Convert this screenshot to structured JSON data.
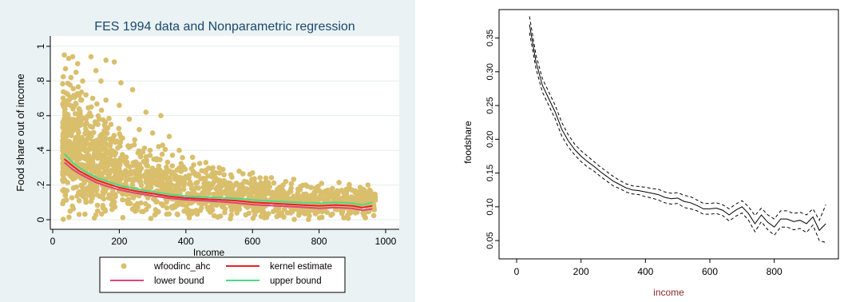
{
  "chart_data": [
    {
      "type": "scatter",
      "title": "FES 1994 data and Nonparametric regression",
      "xlabel": "Income",
      "ylabel": "Food share out of income",
      "xlim": [
        0,
        1000
      ],
      "ylim": [
        0,
        1
      ],
      "xticks": [
        0,
        200,
        400,
        600,
        800,
        1000
      ],
      "yticks": [
        0,
        0.2,
        0.4,
        0.6,
        0.8,
        1
      ],
      "ytick_labels": [
        "0",
        ".2",
        ".4",
        ".6",
        ".8",
        "1"
      ],
      "grid": true,
      "legend_position": "bottom",
      "series": [
        {
          "name": "wfoodinc_ahc",
          "kind": "points",
          "color": "#D9BE6C",
          "description_points": [
            [
              35,
              0.95
            ],
            [
              48,
              0.93
            ],
            [
              60,
              0.94
            ],
            [
              75,
              0.9
            ],
            [
              115,
              0.94
            ],
            [
              160,
              0.92
            ],
            [
              185,
              0.91
            ],
            [
              70,
              0.85
            ],
            [
              55,
              0.82
            ],
            [
              90,
              0.8
            ],
            [
              130,
              0.86
            ],
            [
              145,
              0.8
            ],
            [
              205,
              0.79
            ],
            [
              240,
              0.75
            ],
            [
              100,
              0.72
            ],
            [
              120,
              0.7
            ],
            [
              160,
              0.69
            ],
            [
              200,
              0.66
            ],
            [
              280,
              0.62
            ],
            [
              325,
              0.6
            ],
            [
              230,
              0.58
            ],
            [
              80,
              0.6
            ],
            [
              140,
              0.58
            ],
            [
              175,
              0.55
            ],
            [
              260,
              0.52
            ],
            [
              300,
              0.5
            ],
            [
              350,
              0.48
            ],
            [
              210,
              0.47
            ],
            [
              330,
              0.43
            ],
            [
              380,
              0.4
            ],
            [
              420,
              0.36
            ],
            [
              460,
              0.33
            ],
            [
              500,
              0.3
            ],
            [
              560,
              0.28
            ],
            [
              600,
              0.27
            ],
            [
              640,
              0.24
            ],
            [
              700,
              0.22
            ],
            [
              760,
              0.2
            ],
            [
              840,
              0.18
            ],
            [
              900,
              0.17
            ],
            [
              950,
              0.16
            ]
          ]
        },
        {
          "name": "kernel estimate",
          "kind": "line",
          "color": "#E8202A",
          "x": [
            35,
            60,
            80,
            100,
            130,
            160,
            200,
            250,
            300,
            350,
            400,
            450,
            500,
            550,
            600,
            650,
            700,
            750,
            800,
            850,
            900,
            930,
            960
          ],
          "y": [
            0.35,
            0.31,
            0.28,
            0.26,
            0.23,
            0.21,
            0.185,
            0.165,
            0.15,
            0.135,
            0.125,
            0.12,
            0.115,
            0.11,
            0.1,
            0.095,
            0.09,
            0.085,
            0.08,
            0.085,
            0.08,
            0.07,
            0.08
          ]
        },
        {
          "name": "lower bound",
          "kind": "line",
          "color": "#E0457B",
          "x": [
            35,
            60,
            80,
            100,
            130,
            160,
            200,
            250,
            300,
            350,
            400,
            450,
            500,
            550,
            600,
            650,
            700,
            750,
            800,
            850,
            900,
            930,
            960
          ],
          "y": [
            0.33,
            0.29,
            0.265,
            0.245,
            0.215,
            0.195,
            0.172,
            0.153,
            0.138,
            0.124,
            0.115,
            0.11,
            0.104,
            0.097,
            0.087,
            0.082,
            0.077,
            0.072,
            0.066,
            0.07,
            0.065,
            0.055,
            0.062
          ]
        },
        {
          "name": "upper bound",
          "kind": "line",
          "color": "#4CD98A",
          "x": [
            35,
            60,
            80,
            100,
            130,
            160,
            200,
            250,
            300,
            350,
            400,
            450,
            500,
            550,
            600,
            650,
            700,
            750,
            800,
            850,
            900,
            930,
            960
          ],
          "y": [
            0.38,
            0.33,
            0.3,
            0.275,
            0.245,
            0.225,
            0.198,
            0.178,
            0.162,
            0.147,
            0.136,
            0.131,
            0.127,
            0.123,
            0.114,
            0.108,
            0.103,
            0.099,
            0.095,
            0.1,
            0.095,
            0.085,
            0.1
          ]
        }
      ],
      "legend": [
        "wfoodinc_ahc",
        "kernel estimate",
        "lower bound",
        "upper bound"
      ]
    },
    {
      "type": "line",
      "xlabel": "income",
      "ylabel": "foodshare",
      "xlim": [
        0,
        960
      ],
      "ylim": [
        0.03,
        0.385
      ],
      "xticks": [
        0,
        200,
        400,
        600,
        800
      ],
      "yticks": [
        0.05,
        0.1,
        0.15,
        0.2,
        0.25,
        0.3,
        0.35
      ],
      "ytick_labels": [
        "0.05",
        "0.10",
        "0.15",
        "0.20",
        "0.25",
        "0.30",
        "0.35"
      ],
      "series": [
        {
          "kind": "solid",
          "x": [
            40,
            60,
            80,
            100,
            120,
            140,
            160,
            180,
            200,
            220,
            240,
            260,
            280,
            300,
            320,
            340,
            360,
            380,
            400,
            420,
            440,
            460,
            480,
            500,
            520,
            540,
            560,
            580,
            600,
            620,
            640,
            660,
            680,
            700,
            720,
            740,
            760,
            780,
            800,
            820,
            840,
            860,
            880,
            900,
            920,
            940,
            960
          ],
          "y": [
            0.37,
            0.315,
            0.28,
            0.26,
            0.24,
            0.215,
            0.198,
            0.185,
            0.175,
            0.167,
            0.16,
            0.152,
            0.145,
            0.138,
            0.133,
            0.128,
            0.125,
            0.124,
            0.122,
            0.12,
            0.118,
            0.114,
            0.112,
            0.113,
            0.108,
            0.106,
            0.102,
            0.097,
            0.097,
            0.098,
            0.095,
            0.088,
            0.095,
            0.1,
            0.09,
            0.075,
            0.088,
            0.077,
            0.07,
            0.082,
            0.082,
            0.078,
            0.08,
            0.075,
            0.085,
            0.065,
            0.075
          ]
        },
        {
          "kind": "dashed-upper",
          "x": [
            40,
            60,
            80,
            100,
            120,
            140,
            160,
            180,
            200,
            220,
            240,
            260,
            280,
            300,
            320,
            340,
            360,
            380,
            400,
            420,
            440,
            460,
            480,
            500,
            520,
            540,
            560,
            580,
            600,
            620,
            640,
            660,
            680,
            700,
            720,
            740,
            760,
            780,
            800,
            820,
            840,
            860,
            880,
            900,
            920,
            940,
            960
          ],
          "y": [
            0.382,
            0.325,
            0.29,
            0.27,
            0.25,
            0.225,
            0.207,
            0.193,
            0.183,
            0.175,
            0.167,
            0.159,
            0.152,
            0.145,
            0.139,
            0.134,
            0.131,
            0.13,
            0.129,
            0.127,
            0.126,
            0.122,
            0.12,
            0.121,
            0.117,
            0.115,
            0.11,
            0.105,
            0.105,
            0.106,
            0.103,
            0.097,
            0.104,
            0.109,
            0.1,
            0.087,
            0.098,
            0.088,
            0.082,
            0.094,
            0.094,
            0.09,
            0.092,
            0.088,
            0.097,
            0.08,
            0.103
          ]
        },
        {
          "kind": "dashed-lower",
          "x": [
            40,
            60,
            80,
            100,
            120,
            140,
            160,
            180,
            200,
            220,
            240,
            260,
            280,
            300,
            320,
            340,
            360,
            380,
            400,
            420,
            440,
            460,
            480,
            500,
            520,
            540,
            560,
            580,
            600,
            620,
            640,
            660,
            680,
            700,
            720,
            740,
            760,
            780,
            800,
            820,
            840,
            860,
            880,
            900,
            920,
            940,
            960
          ],
          "y": [
            0.358,
            0.305,
            0.27,
            0.25,
            0.23,
            0.205,
            0.189,
            0.177,
            0.167,
            0.159,
            0.153,
            0.145,
            0.138,
            0.131,
            0.127,
            0.122,
            0.119,
            0.118,
            0.115,
            0.113,
            0.11,
            0.106,
            0.104,
            0.105,
            0.099,
            0.097,
            0.094,
            0.089,
            0.089,
            0.09,
            0.087,
            0.079,
            0.086,
            0.091,
            0.08,
            0.063,
            0.078,
            0.066,
            0.058,
            0.07,
            0.07,
            0.066,
            0.068,
            0.062,
            0.073,
            0.05,
            0.047
          ]
        }
      ]
    }
  ]
}
